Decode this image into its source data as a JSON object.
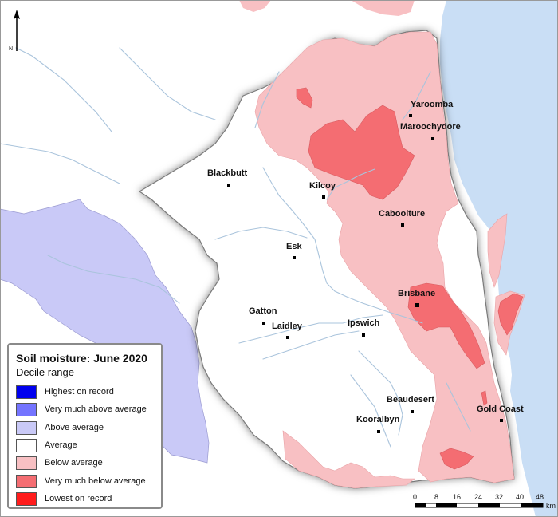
{
  "title": "Soil moisture: June 2020",
  "subtitle": "Decile range",
  "legend": [
    {
      "label": "Highest on record",
      "color": "#0000ee"
    },
    {
      "label": "Very much above average",
      "color": "#7474ff"
    },
    {
      "label": "Above average",
      "color": "#c9c9f7"
    },
    {
      "label": "Average",
      "color": "#ffffff"
    },
    {
      "label": "Below average",
      "color": "#f8c0c3"
    },
    {
      "label": "Very much below average",
      "color": "#f46d72"
    },
    {
      "label": "Lowest on record",
      "color": "#ff1c1c"
    }
  ],
  "towns": [
    "Yaroomba",
    "Maroochydore",
    "Blackbutt",
    "Kilcoy",
    "Caboolture",
    "Esk",
    "Brisbane",
    "Gatton",
    "Laidley",
    "Ipswich",
    "Beaudesert",
    "Kooralbyn",
    "Gold Coast"
  ],
  "scale": {
    "ticks": [
      "0",
      "8",
      "16",
      "24",
      "32",
      "40",
      "48"
    ],
    "unit": "km"
  },
  "north": "N",
  "colors": {
    "sea": "#c9def5",
    "river": "#aac4dc",
    "boundary": "#7a7a7a"
  }
}
